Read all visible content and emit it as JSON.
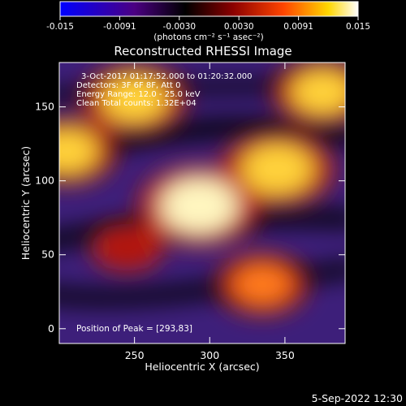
{
  "chart_data": {
    "type": "heatmap",
    "title": "Reconstructed RHESSI Image",
    "xlabel": "Heliocentric X (arcsec)",
    "ylabel": "Heliocentric Y (arcsec)",
    "xlim": [
      200,
      390
    ],
    "ylim": [
      -10,
      180
    ],
    "x_ticks": [
      250,
      300,
      350
    ],
    "y_ticks": [
      0,
      50,
      100,
      150
    ],
    "colorbar": {
      "min": -0.015,
      "max": 0.015,
      "ticks": [
        "-0.015",
        "-0.0091",
        "-0.0030",
        "0.0030",
        "0.0091",
        "0.015"
      ],
      "unit_label": "(photons cm⁻² s⁻¹ asec⁻²)",
      "colormap": [
        "#0000ff",
        "#4b0082",
        "#000000",
        "#8b0000",
        "#ff4500",
        "#ffd700",
        "#ffffff"
      ]
    },
    "annotations": [
      "3-Oct-2017 01:17:52.000 to 01:20:32.000",
      "Detectors: 3F 6F 8F, Att 0",
      "Energy Range: 12.0 - 25.0 keV",
      "Clean     Total counts: 1.32E+04"
    ],
    "peak_label": "Position of Peak = [293,83]",
    "peak": [
      293,
      83
    ],
    "sources": [
      {
        "x": 293,
        "y": 83,
        "value": 0.015
      },
      {
        "x": 345,
        "y": 108,
        "value": 0.013
      },
      {
        "x": 205,
        "y": 120,
        "value": 0.01
      },
      {
        "x": 250,
        "y": 155,
        "value": 0.011
      },
      {
        "x": 375,
        "y": 160,
        "value": 0.01
      },
      {
        "x": 335,
        "y": 30,
        "value": 0.008
      },
      {
        "x": 245,
        "y": 55,
        "value": 0.004
      }
    ]
  },
  "footer": {
    "date": "5-Sep-2022 12:30"
  }
}
